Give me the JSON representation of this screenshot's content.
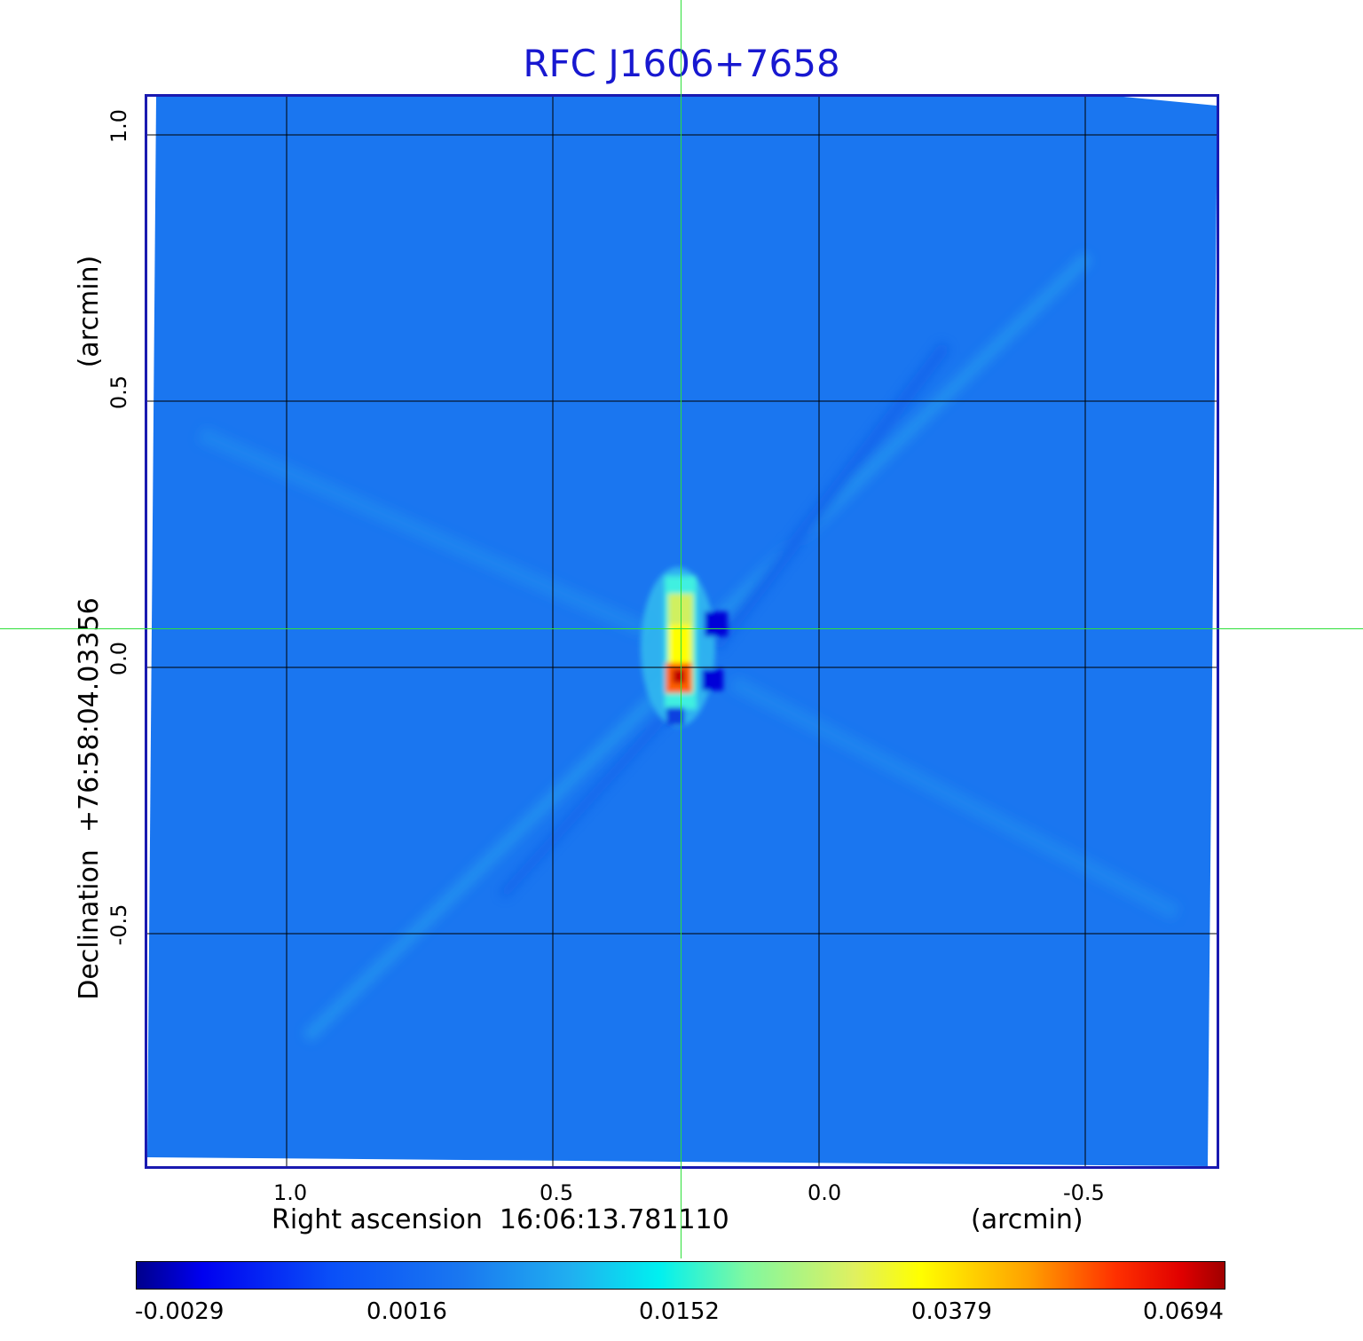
{
  "title": "RFC J1606+7658",
  "x_axis": {
    "label": "Right ascension  16:06:13.781110",
    "unit": "(arcmin)",
    "ticks": [
      "1.0",
      "0.5",
      "0.0",
      "-0.5"
    ]
  },
  "y_axis": {
    "label": "Declination  +76:58:04.03356",
    "unit": "(arcmin)",
    "ticks": [
      "1.0",
      "0.5",
      "0.0",
      "-0.5"
    ]
  },
  "colorbar": {
    "ticks": [
      "-0.0029",
      "0.0016",
      "0.0152",
      "0.0379",
      "0.0694"
    ],
    "colors": [
      "#00008c",
      "#0000f0",
      "#1a78f0",
      "#00f0f0",
      "#ffff00",
      "#ff3000",
      "#a00000"
    ]
  },
  "image": {
    "background_color": "#1a76f0",
    "source_peak_color": "#c00000"
  }
}
